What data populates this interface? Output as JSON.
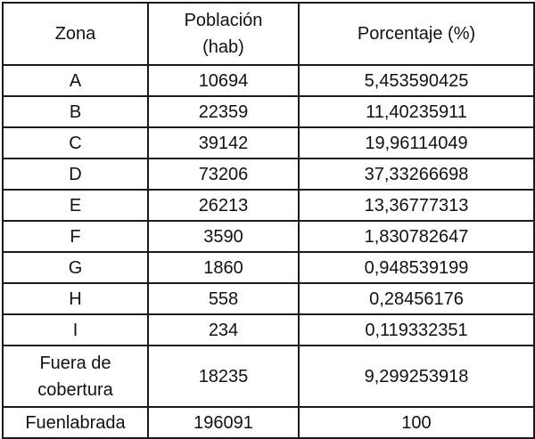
{
  "table": {
    "headers": [
      "Zona",
      "Población (hab)",
      "Porcentaje (%)"
    ],
    "header_lines": {
      "poblacion": [
        "Población",
        "(hab)"
      ]
    },
    "rows": [
      [
        "A",
        "10694",
        "5,453590425"
      ],
      [
        "B",
        "22359",
        "11,40235911"
      ],
      [
        "C",
        "39142",
        "19,96114049"
      ],
      [
        "D",
        "73206",
        "37,33266698"
      ],
      [
        "E",
        "26213",
        "13,36777313"
      ],
      [
        "F",
        "3590",
        "1,830782647"
      ],
      [
        "G",
        "1860",
        "0,948539199"
      ],
      [
        "H",
        "558",
        "0,28456176"
      ],
      [
        "I",
        "234",
        "0,119332351"
      ],
      [
        "Fuera de cobertura",
        "18235",
        "9,299253918"
      ],
      [
        "Fuenlabrada",
        "196091",
        "100"
      ]
    ]
  }
}
